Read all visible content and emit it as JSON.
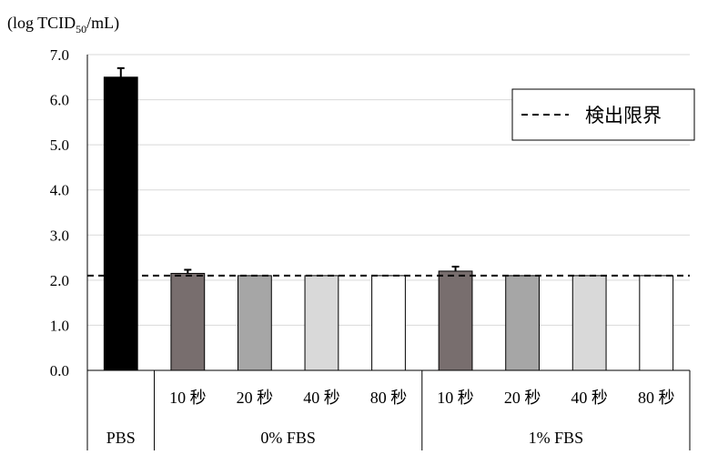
{
  "chart_data": {
    "type": "bar",
    "ylabel": "(log TCID",
    "ylabel_sub": "50",
    "ylabel_tail": "/mL)",
    "ylim": [
      0,
      7
    ],
    "yticks": [
      "0.0",
      "1.0",
      "2.0",
      "3.0",
      "4.0",
      "5.0",
      "6.0",
      "7.0"
    ],
    "grid": "horizontal",
    "detection_limit": {
      "value": 2.1,
      "label": "検出限界",
      "style": "dashed"
    },
    "legend_position": "top-right",
    "categories": [
      "PBS",
      "10 秒",
      "20 秒",
      "40 秒",
      "80 秒",
      "10 秒",
      "20 秒",
      "40 秒",
      "80 秒"
    ],
    "groups": [
      {
        "label": "PBS",
        "span": [
          0,
          0
        ]
      },
      {
        "label": "0% FBS",
        "span": [
          1,
          4
        ]
      },
      {
        "label": "1% FBS",
        "span": [
          5,
          8
        ]
      }
    ],
    "values": [
      6.5,
      2.15,
      2.1,
      2.1,
      2.1,
      2.2,
      2.1,
      2.1,
      2.1
    ],
    "errors": [
      0.2,
      0.08,
      0,
      0,
      0,
      0.1,
      0,
      0,
      0
    ],
    "colors": [
      "#000000",
      "#786e6e",
      "#a6a6a6",
      "#d9d9d9",
      "#ffffff",
      "#786e6e",
      "#a6a6a6",
      "#d9d9d9",
      "#ffffff"
    ]
  }
}
